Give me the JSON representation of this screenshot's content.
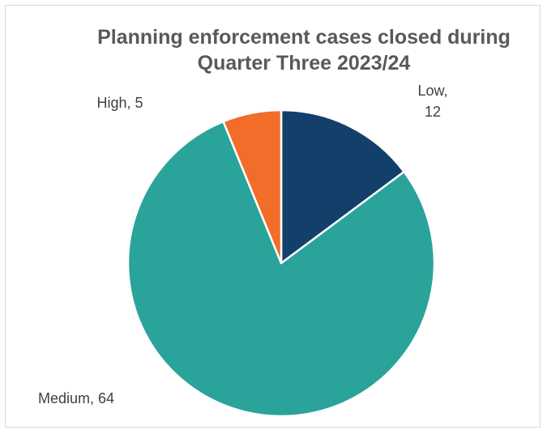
{
  "chart_data": {
    "type": "pie",
    "title_lines": [
      "Planning enforcement cases closed during",
      "Quarter Three 2023/24"
    ],
    "slices": [
      {
        "label": "Low",
        "value": 12,
        "color": "#133f6b",
        "label_lines": [
          "Low,",
          "12"
        ]
      },
      {
        "label": "Medium",
        "value": 64,
        "color": "#2aa39a",
        "label_lines": [
          "Medium, 64"
        ]
      },
      {
        "label": "High",
        "value": 5,
        "color": "#f26c2a",
        "label_lines": [
          "High, 5"
        ]
      }
    ],
    "start_angle_deg": 0,
    "direction": "clockwise",
    "legend": "none"
  }
}
